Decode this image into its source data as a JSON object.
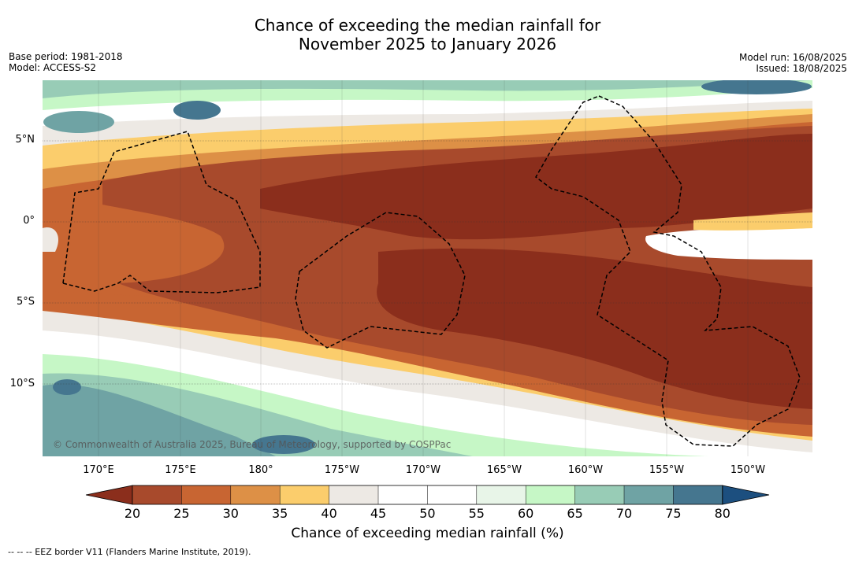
{
  "title_line1": "Chance of exceeding the median rainfall for",
  "title_line2": "November 2025 to January 2026",
  "base_period": "Base period: 1981-2018",
  "model": "Model: ACCESS-S2",
  "model_run": "Model run: 16/08/2025",
  "issued": "Issued: 18/08/2025",
  "lat_labels": [
    "5°N",
    "0°",
    "5°S",
    "10°S"
  ],
  "lon_labels": [
    "170°E",
    "175°E",
    "180°",
    "175°W",
    "170°W",
    "165°W",
    "160°W",
    "155°W",
    "150°W"
  ],
  "colorbar": {
    "ticks": [
      "20",
      "25",
      "30",
      "35",
      "40",
      "45",
      "50",
      "55",
      "60",
      "65",
      "70",
      "75",
      "80"
    ],
    "colors": [
      "#8b2e1c",
      "#a84a2c",
      "#c86532",
      "#dd9046",
      "#fbcd6c",
      "#ede9e4",
      "#ffffff",
      "#ffffff",
      "#e8f5e8",
      "#c6f7c6",
      "#98ccb6",
      "#6fa3a4",
      "#45768f",
      "#1c4f7f"
    ],
    "label": "Chance of exceeding median rainfall (%)"
  },
  "copyright": "© Commonwealth of Australia 2025, Bureau of Meteorology, supported by COSPPac",
  "footer": "-- -- -- EEZ border V11 (Flanders Marine Institute, 2019)."
}
